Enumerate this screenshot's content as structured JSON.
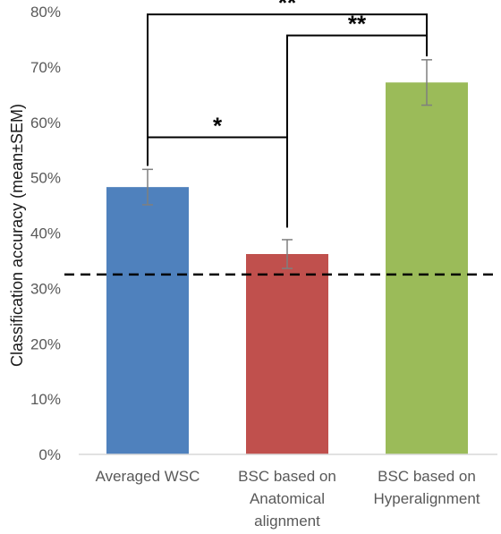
{
  "chart_data": {
    "type": "bar",
    "ylabel": "Classification accuracy (mean±SEM)",
    "ylim": [
      0,
      80
    ],
    "yticks": [
      "0%",
      "10%",
      "20%",
      "30%",
      "40%",
      "50%",
      "60%",
      "70%",
      "80%"
    ],
    "categories": [
      [
        "Averaged WSC"
      ],
      [
        "BSC based on",
        "Anatomical",
        "alignment"
      ],
      [
        "BSC based on",
        "Hyperalignment"
      ]
    ],
    "values": [
      48.3,
      36.2,
      67.2
    ],
    "sem": [
      3.2,
      2.6,
      4.1
    ],
    "colors": [
      "#4f81bd",
      "#c0504d",
      "#9bbb59"
    ],
    "chance_level": 32.5,
    "significance": [
      {
        "from": 0,
        "to": 1,
        "label": "*"
      },
      {
        "from": 1,
        "to": 2,
        "label": "**"
      },
      {
        "from": 0,
        "to": 2,
        "label": "**"
      }
    ],
    "grid": false,
    "legend": "none"
  }
}
